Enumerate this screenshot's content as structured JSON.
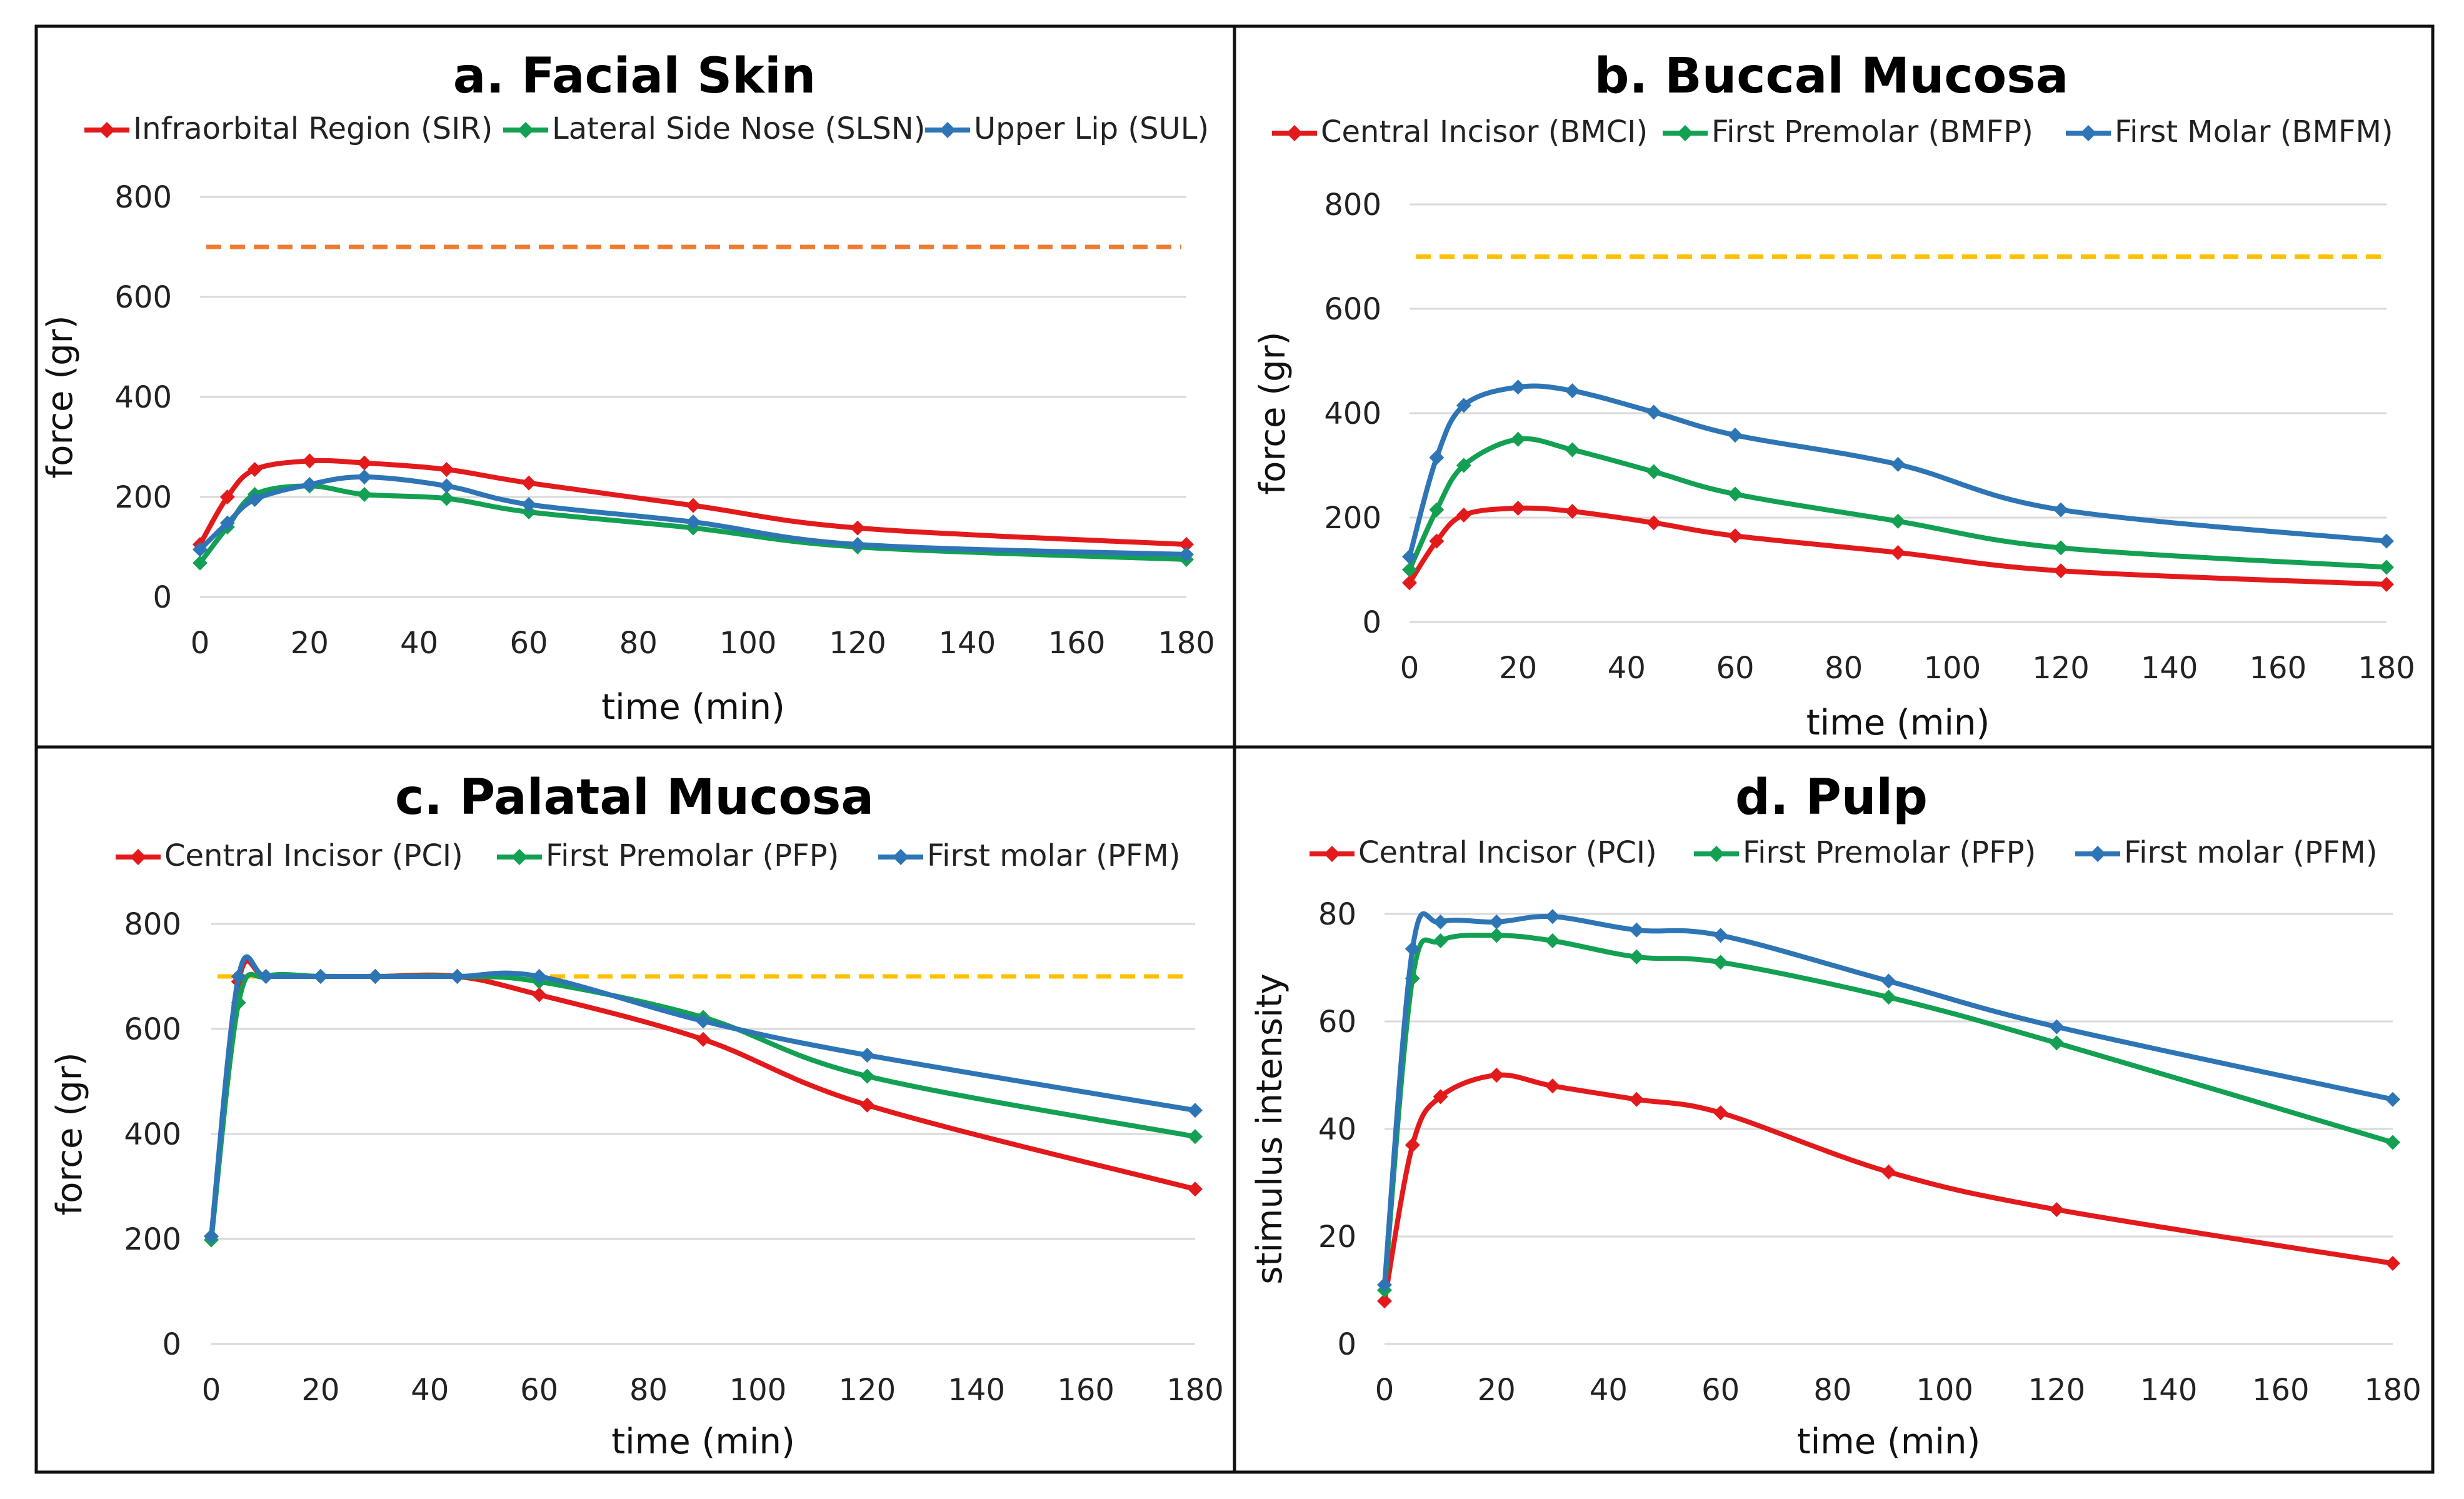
{
  "chart_data": [
    {
      "type": "line",
      "title": "a. Facial Skin",
      "xlabel": "time (min)",
      "ylabel": "force (gr)",
      "xlim": [
        0,
        180
      ],
      "ylim": [
        0,
        800
      ],
      "xticks": [
        "0",
        "20",
        "40",
        "60",
        "80",
        "100",
        "120",
        "140",
        "160",
        "180"
      ],
      "yticks": [
        "0",
        "200",
        "400",
        "600",
        "800"
      ],
      "threshold": {
        "value": 700,
        "color": "#ED7D31"
      },
      "x": [
        0,
        5,
        10,
        20,
        30,
        45,
        60,
        90,
        120,
        180
      ],
      "series": [
        {
          "name": "Infraorbital Region (SIR)",
          "color": "#E31A1C",
          "values": [
            105,
            200,
            255,
            272,
            268,
            255,
            228,
            183,
            138,
            105
          ]
        },
        {
          "name": "Lateral Side Nose (SLSN)",
          "color": "#13A052",
          "values": [
            68,
            140,
            205,
            222,
            205,
            197,
            170,
            138,
            100,
            75
          ]
        },
        {
          "name": "Upper Lip (SUL)",
          "color": "#2E75B6",
          "values": [
            95,
            148,
            195,
            225,
            240,
            222,
            185,
            150,
            105,
            85
          ]
        }
      ]
    },
    {
      "type": "line",
      "title": "b. Buccal Mucosa",
      "xlabel": "time (min)",
      "ylabel": "force (gr)",
      "xlim": [
        0,
        180
      ],
      "ylim": [
        0,
        800
      ],
      "xticks": [
        "0",
        "20",
        "40",
        "60",
        "80",
        "100",
        "120",
        "140",
        "160",
        "180"
      ],
      "yticks": [
        "0",
        "200",
        "400",
        "600",
        "800"
      ],
      "threshold": {
        "value": 700,
        "color": "#FFC000"
      },
      "x": [
        0,
        5,
        10,
        20,
        30,
        45,
        60,
        90,
        120,
        180
      ],
      "series": [
        {
          "name": "Central Incisor (BMCI)",
          "color": "#E31A1C",
          "values": [
            75,
            155,
            205,
            218,
            212,
            190,
            165,
            133,
            98,
            72
          ]
        },
        {
          "name": "First Premolar (BMFP)",
          "color": "#13A052",
          "values": [
            100,
            215,
            300,
            350,
            330,
            288,
            245,
            193,
            142,
            105
          ]
        },
        {
          "name": "First Molar (BMFM)",
          "color": "#2E75B6",
          "values": [
            125,
            315,
            415,
            450,
            443,
            402,
            358,
            302,
            215,
            155
          ]
        }
      ]
    },
    {
      "type": "line",
      "title": "c. Palatal Mucosa",
      "xlabel": "time (min)",
      "ylabel": "force (gr)",
      "xlim": [
        0,
        180
      ],
      "ylim": [
        0,
        800
      ],
      "xticks": [
        "0",
        "20",
        "40",
        "60",
        "80",
        "100",
        "120",
        "140",
        "160",
        "180"
      ],
      "yticks": [
        "0",
        "200",
        "400",
        "600",
        "800"
      ],
      "threshold": {
        "value": 700,
        "color": "#FFC000"
      },
      "x": [
        0,
        5,
        10,
        20,
        30,
        45,
        60,
        90,
        120,
        180
      ],
      "series": [
        {
          "name": "Central Incisor (PCI)",
          "color": "#E31A1C",
          "values": [
            205,
            690,
            700,
            700,
            700,
            700,
            665,
            580,
            455,
            295
          ]
        },
        {
          "name": "First Premolar (PFP)",
          "color": "#13A052",
          "values": [
            198,
            650,
            700,
            700,
            700,
            700,
            690,
            622,
            510,
            395
          ]
        },
        {
          "name": "First molar (PFM)",
          "color": "#2E75B6",
          "values": [
            205,
            700,
            700,
            700,
            700,
            700,
            700,
            615,
            550,
            445
          ]
        }
      ]
    },
    {
      "type": "line",
      "title": "d. Pulp",
      "xlabel": "time (min)",
      "ylabel": "stimulus intensity",
      "xlim": [
        0,
        180
      ],
      "ylim": [
        0,
        80
      ],
      "xticks": [
        "0",
        "20",
        "40",
        "60",
        "80",
        "100",
        "120",
        "140",
        "160",
        "180"
      ],
      "yticks": [
        "0",
        "20",
        "40",
        "60",
        "80"
      ],
      "threshold": null,
      "x": [
        0,
        5,
        10,
        20,
        30,
        45,
        60,
        90,
        120,
        180
      ],
      "series": [
        {
          "name": "Central Incisor (PCI)",
          "color": "#E31A1C",
          "values": [
            8,
            37,
            46,
            50,
            48,
            45.5,
            43,
            32,
            25,
            15
          ]
        },
        {
          "name": "First Premolar (PFP)",
          "color": "#13A052",
          "values": [
            10,
            68,
            75,
            76,
            75,
            72,
            71,
            64.5,
            56,
            37.5
          ]
        },
        {
          "name": "First molar (PFM)",
          "color": "#2E75B6",
          "values": [
            11,
            73.5,
            78.5,
            78.5,
            79.5,
            77,
            76,
            67.5,
            59,
            45.5
          ]
        }
      ]
    }
  ]
}
